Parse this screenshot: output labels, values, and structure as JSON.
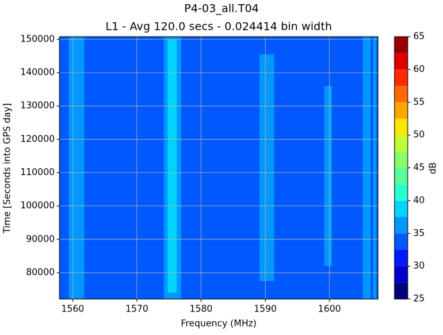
{
  "chart_data": {
    "type": "heatmap",
    "title": "P4-03_all.T04",
    "subtitle": "L1 - Avg 120.0 secs - 0.024414 bin width",
    "x_label": "Frequency (MHz)",
    "y_label": "Time [Seconds into GPS day]",
    "xlim": [
      1557.95,
      1607.55
    ],
    "xticks": [
      1560,
      1570,
      1580,
      1590,
      1600
    ],
    "ylim": [
      72100,
      150800
    ],
    "yticks": [
      80000,
      90000,
      100000,
      110000,
      120000,
      130000,
      140000,
      150000
    ],
    "grid": true,
    "background_value": 34,
    "regions": [
      {
        "x": [
          1559.4,
          1561.8
        ],
        "y": [
          72100,
          150800
        ],
        "value": 36
      },
      {
        "x": [
          1574.2,
          1576.9
        ],
        "y": [
          72100,
          150800
        ],
        "value": 36
      },
      {
        "x": [
          1574.8,
          1576.2
        ],
        "y": [
          74000,
          150000
        ],
        "value": 38.5
      },
      {
        "x": [
          1589.1,
          1591.4
        ],
        "y": [
          77500,
          145500
        ],
        "value": 36
      },
      {
        "x": [
          1599.2,
          1600.4
        ],
        "y": [
          82000,
          136000
        ],
        "value": 36
      },
      {
        "x": [
          1605.2,
          1606.4
        ],
        "y": [
          72100,
          150800
        ],
        "value": 36
      },
      {
        "x": [
          1606.8,
          1607.3
        ],
        "y": [
          72100,
          150800
        ],
        "value": 36
      }
    ],
    "levels": [
      25,
      27.5,
      30,
      32.5,
      35,
      37.5,
      40,
      42.5,
      45,
      47.5,
      50,
      52.5,
      55,
      57.5,
      60,
      62.5,
      65
    ],
    "colors": [
      "#00007f",
      "#0000c8",
      "#0018ff",
      "#0058ff",
      "#0098ff",
      "#00d4ff",
      "#29ffce",
      "#5aff9d",
      "#8aff6d",
      "#c1ff36",
      "#ffe600",
      "#ffa700",
      "#ff6800",
      "#ff2900",
      "#e00000",
      "#9b0000"
    ],
    "colorbar_label": "dB",
    "colorbar_ticks": [
      25,
      30,
      35,
      40,
      45,
      50,
      55,
      60,
      65
    ]
  }
}
